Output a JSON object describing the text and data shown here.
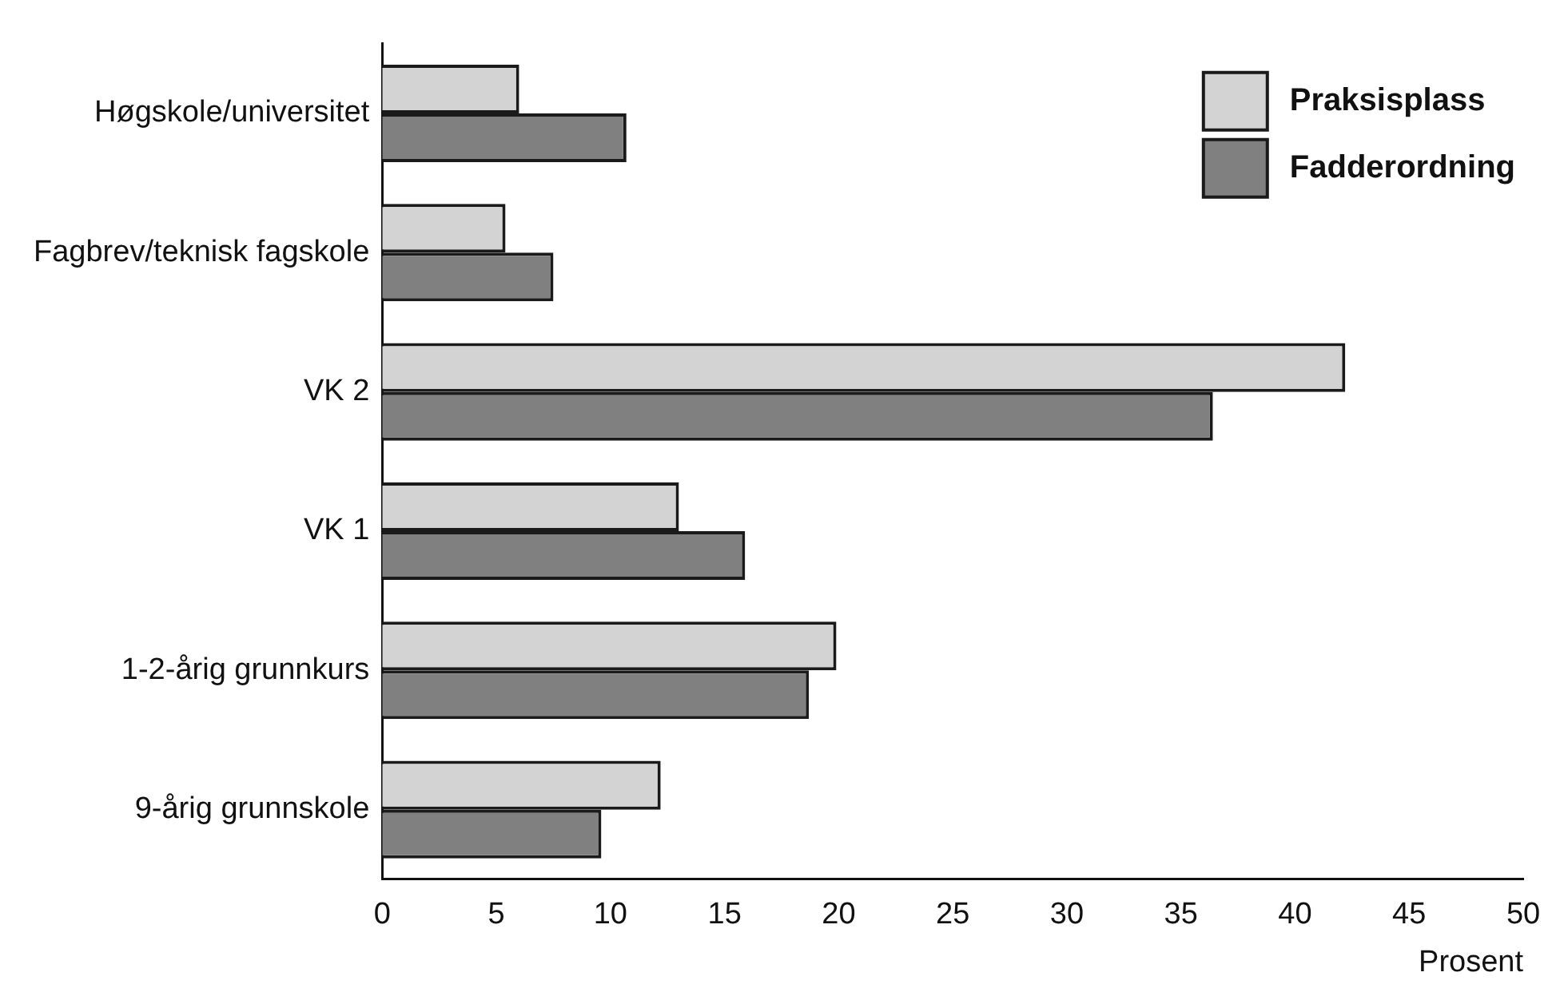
{
  "chart_data": {
    "type": "bar",
    "orientation": "horizontal",
    "xlabel": "Prosent",
    "categories": [
      "Høgskole/universitet",
      "Fagbrev/teknisk fagskole",
      "VK 2",
      "VK 1",
      "1-2-årig grunnkurs",
      "9-årig grunnskole"
    ],
    "series": [
      {
        "name": "Praksisplass",
        "color": "#d3d3d3",
        "values": [
          6.0,
          5.4,
          42.2,
          13.0,
          19.9,
          12.2
        ]
      },
      {
        "name": "Fadderordning",
        "color": "#808080",
        "values": [
          10.7,
          7.5,
          36.4,
          15.9,
          18.7,
          9.6
        ]
      }
    ],
    "xlim": [
      0,
      50
    ],
    "xticks": [
      0,
      5,
      10,
      15,
      20,
      25,
      30,
      35,
      40,
      45,
      50
    ],
    "grid": false,
    "legend": "top right"
  }
}
